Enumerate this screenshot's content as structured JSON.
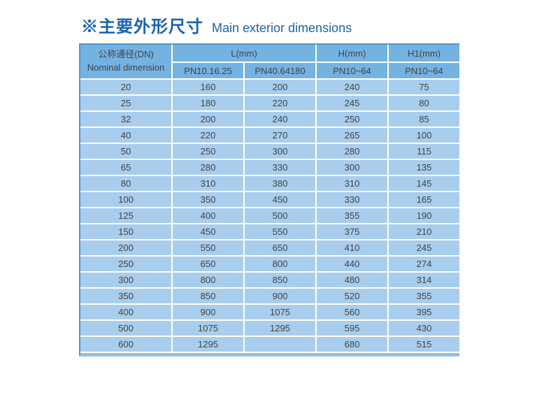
{
  "title": {
    "zh": "※主要外形尺寸",
    "en": "Main exterior dimensions"
  },
  "colors": {
    "title_blue": "#1a63ae",
    "header_bg": "#74b2e2",
    "row_bg": "#a9cdec",
    "outer_border": "#5096cd",
    "bottom_strip": "#8fc0e8",
    "separator": "#ffffff",
    "text": "#3f4346"
  },
  "table": {
    "header": {
      "col_dn_zh": "公称通径(DN)",
      "col_dn_en": "Nominal dimension",
      "group_l": "L(mm)",
      "sub_l1": "PN10.16.25",
      "sub_l2": "PN40.64180",
      "col_h": "H(mm)",
      "sub_h": "PN10~64",
      "col_h1": "H1(mm)",
      "sub_h1": "PN10~64"
    },
    "rows": [
      [
        "20",
        "160",
        "200",
        "240",
        "75"
      ],
      [
        "25",
        "180",
        "220",
        "245",
        "80"
      ],
      [
        "32",
        "200",
        "240",
        "250",
        "85"
      ],
      [
        "40",
        "220",
        "270",
        "265",
        "100"
      ],
      [
        "50",
        "250",
        "300",
        "280",
        "115"
      ],
      [
        "65",
        "280",
        "330",
        "300",
        "135"
      ],
      [
        "80",
        "310",
        "380",
        "310",
        "145"
      ],
      [
        "100",
        "350",
        "450",
        "330",
        "165"
      ],
      [
        "125",
        "400",
        "500",
        "355",
        "190"
      ],
      [
        "150",
        "450",
        "550",
        "375",
        "210"
      ],
      [
        "200",
        "550",
        "650",
        "410",
        "245"
      ],
      [
        "250",
        "650",
        "800",
        "440",
        "274"
      ],
      [
        "300",
        "800",
        "850",
        "480",
        "314"
      ],
      [
        "350",
        "850",
        "900",
        "520",
        "355"
      ],
      [
        "400",
        "900",
        "1075",
        "560",
        "395"
      ],
      [
        "500",
        "1075",
        "1295",
        "595",
        "430"
      ],
      [
        "600",
        "1295",
        "",
        "680",
        "515"
      ]
    ]
  }
}
